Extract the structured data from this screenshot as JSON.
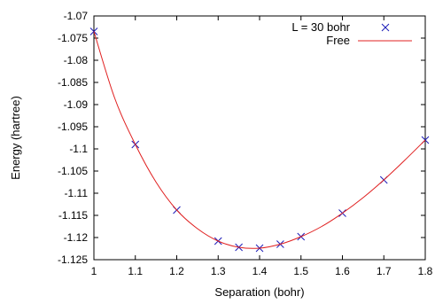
{
  "chart_data": {
    "type": "line",
    "xlabel": "Separation (bohr)",
    "ylabel": "Energy (hartree)",
    "xlim": [
      1,
      1.8
    ],
    "ylim": [
      -1.125,
      -1.07
    ],
    "x_ticks": [
      1,
      1.1,
      1.2,
      1.3,
      1.4,
      1.5,
      1.6,
      1.7,
      1.8
    ],
    "x_tick_labels": [
      "1",
      "1.1",
      "1.2",
      "1.3",
      "1.4",
      "1.5",
      "1.6",
      "1.7",
      "1.8"
    ],
    "y_ticks": [
      -1.125,
      -1.12,
      -1.115,
      -1.11,
      -1.105,
      -1.1,
      -1.095,
      -1.09,
      -1.085,
      -1.08,
      -1.075,
      -1.07
    ],
    "y_tick_labels": [
      "-1.125",
      "-1.12",
      "-1.115",
      "-1.11",
      "-1.105",
      "-1.1",
      "-1.095",
      "-1.09",
      "-1.085",
      "-1.08",
      "-1.075",
      "-1.07"
    ],
    "grid": false,
    "legend_position": "top-right",
    "series": [
      {
        "name": "L = 30 bohr",
        "kind": "scatter",
        "marker": "x",
        "color": "#1a1ab8",
        "x": [
          1.0,
          1.1,
          1.2,
          1.3,
          1.35,
          1.4,
          1.45,
          1.5,
          1.6,
          1.7,
          1.8
        ],
        "y": [
          -1.0735,
          -1.099,
          -1.1138,
          -1.1208,
          -1.1222,
          -1.1224,
          -1.1215,
          -1.1198,
          -1.1145,
          -1.107,
          -1.098
        ]
      },
      {
        "name": "Free",
        "kind": "line",
        "color": "#e02020",
        "x": [
          1.0,
          1.05,
          1.1,
          1.15,
          1.2,
          1.25,
          1.3,
          1.35,
          1.4,
          1.45,
          1.5,
          1.55,
          1.6,
          1.65,
          1.7,
          1.75,
          1.8
        ],
        "y": [
          -1.0735,
          -1.0885,
          -1.099,
          -1.1075,
          -1.1138,
          -1.118,
          -1.1208,
          -1.1222,
          -1.1224,
          -1.1215,
          -1.1198,
          -1.1175,
          -1.1145,
          -1.111,
          -1.107,
          -1.1026,
          -1.098
        ]
      }
    ]
  }
}
